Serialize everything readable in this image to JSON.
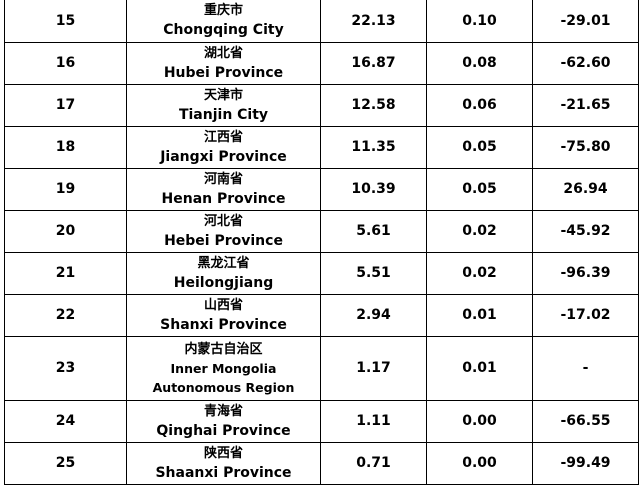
{
  "rows": [
    {
      "rank": "15",
      "name_cn": "重庆市",
      "name_en": "Chongqing City",
      "v1": "22.13",
      "v2": "0.10",
      "v3": "-29.01"
    },
    {
      "rank": "16",
      "name_cn": "湖北省",
      "name_en": "Hubei Province",
      "v1": "16.87",
      "v2": "0.08",
      "v3": "-62.60"
    },
    {
      "rank": "17",
      "name_cn": "天津市",
      "name_en": "Tianjin City",
      "v1": "12.58",
      "v2": "0.06",
      "v3": "-21.65"
    },
    {
      "rank": "18",
      "name_cn": "江西省",
      "name_en": "Jiangxi Province",
      "v1": "11.35",
      "v2": "0.05",
      "v3": "-75.80"
    },
    {
      "rank": "19",
      "name_cn": "河南省",
      "name_en": "Henan Province",
      "v1": "10.39",
      "v2": "0.05",
      "v3": "26.94"
    },
    {
      "rank": "20",
      "name_cn": "河北省",
      "name_en": "Hebei Province",
      "v1": "5.61",
      "v2": "0.02",
      "v3": "-45.92"
    },
    {
      "rank": "21",
      "name_cn": "黑龙江省",
      "name_en": "Heilongjiang",
      "v1": "5.51",
      "v2": "0.02",
      "v3": "-96.39"
    },
    {
      "rank": "22",
      "name_cn": "山西省",
      "name_en": "Shanxi Province",
      "v1": "2.94",
      "v2": "0.01",
      "v3": "-17.02"
    },
    {
      "rank": "23",
      "name_cn": "内蒙古自治区",
      "name_en_line1": "Inner Mongolia",
      "name_en_line2": "Autonomous Region",
      "v1": "1.17",
      "v2": "0.01",
      "v3": "-"
    },
    {
      "rank": "24",
      "name_cn": "青海省",
      "name_en": "Qinghai Province",
      "v1": "1.11",
      "v2": "0.00",
      "v3": "-66.55"
    },
    {
      "rank": "25",
      "name_cn": "陕西省",
      "name_en": "Shaanxi Province",
      "v1": "0.71",
      "v2": "0.00",
      "v3": "-99.49"
    }
  ]
}
